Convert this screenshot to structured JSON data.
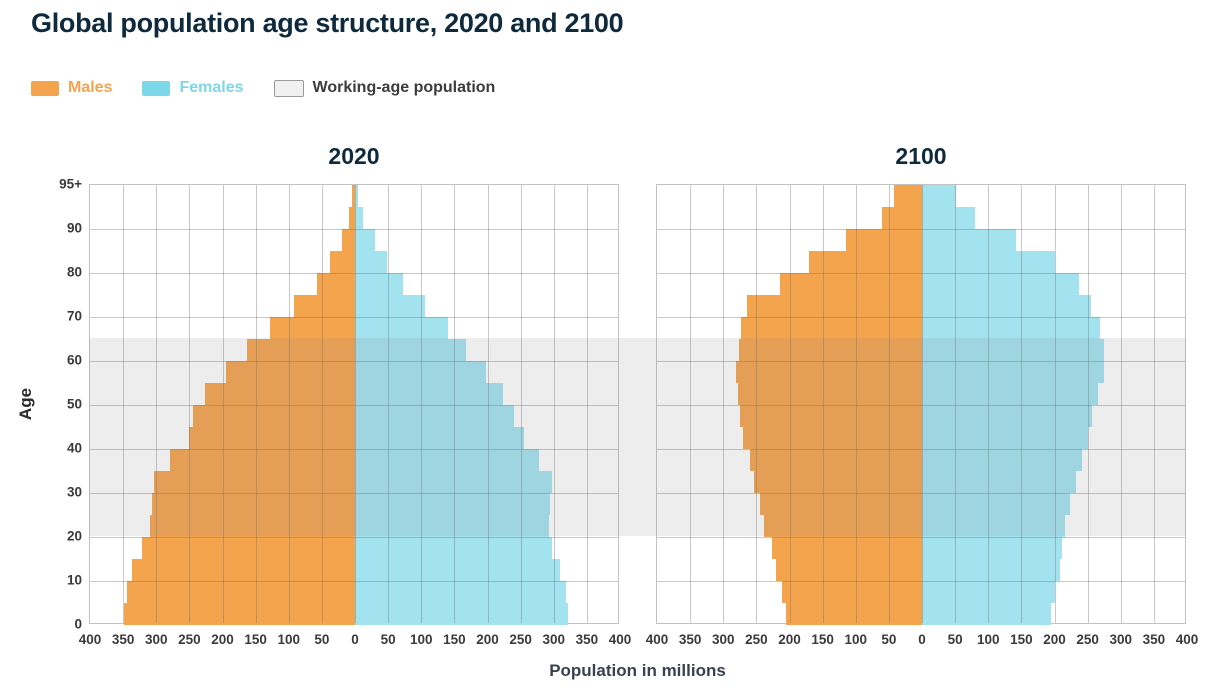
{
  "title": "Global population age structure, 2020 and 2100",
  "legend": {
    "males_label": "Males",
    "females_label": "Females",
    "working_age_label": "Working-age population"
  },
  "axes": {
    "y_label": "Age",
    "x_label": "Population in millions",
    "y_ticks": [
      "95+",
      "90",
      "80",
      "70",
      "60",
      "50",
      "40",
      "30",
      "20",
      "10",
      "0"
    ],
    "x_ticks": [
      "400",
      "350",
      "300",
      "250",
      "200",
      "150",
      "100",
      "50",
      "0",
      "50",
      "100",
      "150",
      "200",
      "250",
      "300",
      "350",
      "400"
    ]
  },
  "colors": {
    "male": "#f5a44e",
    "female": "#a3e3f0",
    "male_legend": "#f5a44e",
    "female_legend": "#7cd7e8",
    "working_label_text": "#3c3c3c",
    "band_overlay": "rgba(125,125,125,0.14)",
    "grid": "rgba(110,110,110,0.38)",
    "heading": "#0f2a3c"
  },
  "chart_data": [
    {
      "type": "bar",
      "variant": "population-pyramid",
      "title": "2020",
      "xlabel": "Population in millions",
      "ylabel": "Age",
      "x_range_millions": [
        -400,
        400
      ],
      "x_tick_interval": 50,
      "working_age_band_years": [
        20,
        65
      ],
      "age_groups": [
        "0-4",
        "5-9",
        "10-14",
        "15-19",
        "20-24",
        "25-29",
        "30-34",
        "35-39",
        "40-44",
        "45-49",
        "50-54",
        "55-59",
        "60-64",
        "65-69",
        "70-74",
        "75-79",
        "80-84",
        "85-89",
        "90-94",
        "95+"
      ],
      "series": [
        {
          "name": "Males",
          "values": [
            348,
            344,
            336,
            321,
            310,
            306,
            303,
            280,
            251,
            244,
            226,
            195,
            163,
            128,
            92,
            57,
            38,
            20,
            9,
            4
          ]
        },
        {
          "name": "Females",
          "values": [
            322,
            318,
            310,
            297,
            293,
            295,
            298,
            277,
            255,
            240,
            224,
            197,
            168,
            141,
            106,
            72,
            48,
            30,
            12,
            5
          ]
        }
      ]
    },
    {
      "type": "bar",
      "variant": "population-pyramid",
      "title": "2100",
      "xlabel": "Population in millions",
      "ylabel": "Age",
      "x_range_millions": [
        -400,
        400
      ],
      "x_tick_interval": 50,
      "working_age_band_years": [
        20,
        65
      ],
      "age_groups": [
        "0-4",
        "5-9",
        "10-14",
        "15-19",
        "20-24",
        "25-29",
        "30-34",
        "35-39",
        "40-44",
        "45-49",
        "50-54",
        "55-59",
        "60-64",
        "65-69",
        "70-74",
        "75-79",
        "80-84",
        "85-89",
        "90-94",
        "95+"
      ],
      "series": [
        {
          "name": "Males",
          "values": [
            206,
            212,
            220,
            227,
            239,
            245,
            254,
            260,
            270,
            274,
            278,
            281,
            276,
            273,
            264,
            214,
            171,
            114,
            61,
            42
          ]
        },
        {
          "name": "Females",
          "values": [
            195,
            201,
            209,
            212,
            216,
            224,
            232,
            241,
            250,
            257,
            266,
            274,
            275,
            269,
            255,
            237,
            200,
            142,
            80,
            51
          ]
        }
      ]
    }
  ]
}
